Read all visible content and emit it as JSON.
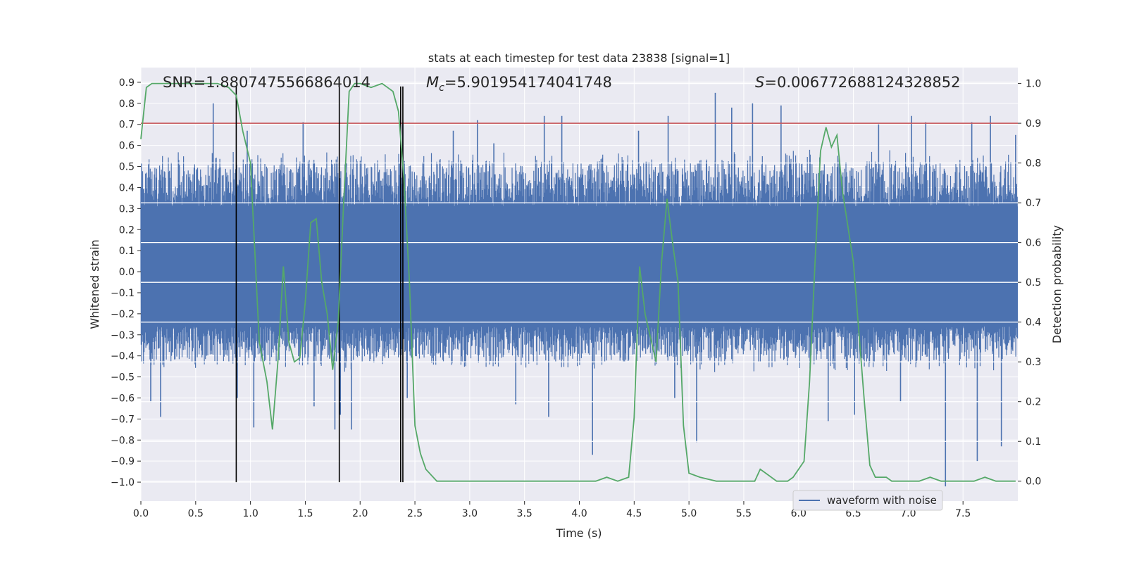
{
  "chart_data": {
    "type": "line",
    "title": "stats at each timestep for test data 23838 [signal=1]",
    "xlabel": "Time (s)",
    "ylabel_left": "Whitened strain",
    "ylabel_right": "Detection probability",
    "xlim": [
      0,
      8.0
    ],
    "ylim_left": [
      -1.09,
      0.97
    ],
    "ylim_right": [
      -0.05,
      1.04
    ],
    "x_ticks": [
      0.0,
      0.5,
      1.0,
      1.5,
      2.0,
      2.5,
      3.0,
      3.5,
      4.0,
      4.5,
      5.0,
      5.5,
      6.0,
      6.5,
      7.0,
      7.5
    ],
    "x_tick_labels": [
      "0.0",
      "0.5",
      "1.0",
      "1.5",
      "2.0",
      "2.5",
      "3.0",
      "3.5",
      "4.0",
      "4.5",
      "5.0",
      "5.5",
      "6.0",
      "6.5",
      "7.0",
      "7.5"
    ],
    "y_left_ticks": [
      0.9,
      0.8,
      0.7,
      0.6,
      0.5,
      0.4,
      0.3,
      0.2,
      0.1,
      0.0,
      -0.1,
      -0.2,
      -0.3,
      -0.4,
      -0.5,
      -0.6,
      -0.7,
      -0.8,
      -0.9,
      -1.0
    ],
    "y_left_tick_labels": [
      "0.9",
      "0.8",
      "0.7",
      "0.6",
      "0.5",
      "0.4",
      "0.3",
      "0.2",
      "0.1",
      "0.0",
      "−0.1",
      "−0.2",
      "−0.3",
      "−0.4",
      "−0.5",
      "−0.6",
      "−0.7",
      "−0.8",
      "−0.9",
      "−1.0"
    ],
    "y_right_ticks": [
      1.0,
      0.9,
      0.8,
      0.7,
      0.6,
      0.5,
      0.4,
      0.3,
      0.2,
      0.1,
      0.0
    ],
    "y_right_tick_labels": [
      "1.0",
      "0.9",
      "0.8",
      "0.7",
      "0.6",
      "0.5",
      "0.4",
      "0.3",
      "0.2",
      "0.1",
      "0.0"
    ],
    "grid": true,
    "legend": {
      "placement": "lower-right",
      "entries": [
        "waveform with noise"
      ]
    },
    "annotations": {
      "snr_prefix": "SNR=",
      "snr": "1.8807475566864014",
      "mc_symbol": "M",
      "mc_subscript": "c",
      "mc_eq": "=",
      "mc": "5.901954174041748",
      "s_symbol": "S",
      "s_eq": "=",
      "s": "0.006772688124328852"
    },
    "threshold": {
      "axis": "right",
      "y": 0.9,
      "color": "#c44e52"
    },
    "vertical_markers": {
      "x": [
        0.87,
        1.81,
        2.37,
        2.39
      ],
      "ylim_left": [
        -1.0,
        0.88
      ],
      "color": "#000000"
    },
    "waveform": {
      "name": "waveform with noise",
      "color": "#4c72b0",
      "axis": "left",
      "x_range": [
        0,
        8.0
      ],
      "core_band": [
        -0.26,
        0.31
      ],
      "typical_extent": [
        -0.45,
        0.55
      ],
      "spikes": [
        {
          "x": 0.09,
          "y": -0.62
        },
        {
          "x": 0.18,
          "y": -0.69
        },
        {
          "x": 0.66,
          "y": 0.8
        },
        {
          "x": 0.88,
          "y": -0.6
        },
        {
          "x": 0.97,
          "y": 0.67
        },
        {
          "x": 1.03,
          "y": -0.74
        },
        {
          "x": 1.48,
          "y": 0.71
        },
        {
          "x": 1.58,
          "y": -0.64
        },
        {
          "x": 1.77,
          "y": -0.75
        },
        {
          "x": 1.82,
          "y": -0.68
        },
        {
          "x": 1.92,
          "y": -0.75
        },
        {
          "x": 2.37,
          "y": 0.71
        },
        {
          "x": 2.39,
          "y": 0.71
        },
        {
          "x": 2.43,
          "y": -0.6
        },
        {
          "x": 2.85,
          "y": 0.67
        },
        {
          "x": 3.07,
          "y": 0.72
        },
        {
          "x": 3.22,
          "y": 0.61
        },
        {
          "x": 3.42,
          "y": -0.63
        },
        {
          "x": 3.68,
          "y": 0.74
        },
        {
          "x": 3.72,
          "y": -0.69
        },
        {
          "x": 3.84,
          "y": 0.74
        },
        {
          "x": 4.12,
          "y": -0.87
        },
        {
          "x": 4.54,
          "y": 0.67
        },
        {
          "x": 4.81,
          "y": 0.74
        },
        {
          "x": 4.87,
          "y": -0.6
        },
        {
          "x": 5.07,
          "y": -0.81
        },
        {
          "x": 5.24,
          "y": 0.85
        },
        {
          "x": 5.39,
          "y": 0.78
        },
        {
          "x": 5.58,
          "y": 0.8
        },
        {
          "x": 5.84,
          "y": 0.79
        },
        {
          "x": 6.27,
          "y": -0.71
        },
        {
          "x": 6.51,
          "y": -0.68
        },
        {
          "x": 6.73,
          "y": 0.7
        },
        {
          "x": 6.93,
          "y": -0.62
        },
        {
          "x": 7.03,
          "y": 0.74
        },
        {
          "x": 7.16,
          "y": 0.71
        },
        {
          "x": 7.34,
          "y": -1.02
        },
        {
          "x": 7.58,
          "y": 0.71
        },
        {
          "x": 7.63,
          "y": -0.9
        },
        {
          "x": 7.75,
          "y": 0.74
        },
        {
          "x": 7.85,
          "y": -0.83
        },
        {
          "x": 7.98,
          "y": 0.65
        }
      ]
    },
    "probability": {
      "axis": "right",
      "color": "#55a868",
      "x": [
        0.0,
        0.05,
        0.1,
        0.15,
        0.2,
        0.3,
        0.4,
        0.5,
        0.6,
        0.7,
        0.8,
        0.87,
        0.93,
        1.0,
        1.08,
        1.15,
        1.2,
        1.25,
        1.3,
        1.35,
        1.4,
        1.45,
        1.5,
        1.55,
        1.6,
        1.65,
        1.7,
        1.75,
        1.8,
        1.85,
        1.9,
        1.95,
        2.0,
        2.1,
        2.2,
        2.25,
        2.3,
        2.35,
        2.4,
        2.45,
        2.5,
        2.55,
        2.6,
        2.7,
        2.8,
        3.0,
        3.2,
        3.3,
        3.5,
        3.75,
        4.0,
        4.15,
        4.25,
        4.35,
        4.45,
        4.5,
        4.55,
        4.6,
        4.7,
        4.75,
        4.8,
        4.85,
        4.9,
        4.95,
        5.0,
        5.1,
        5.25,
        5.4,
        5.6,
        5.65,
        5.7,
        5.8,
        5.9,
        5.95,
        6.05,
        6.1,
        6.15,
        6.2,
        6.25,
        6.3,
        6.35,
        6.4,
        6.5,
        6.6,
        6.65,
        6.7,
        6.8,
        6.85,
        6.9,
        7.0,
        7.1,
        7.2,
        7.3,
        7.4,
        7.5,
        7.6,
        7.7,
        7.8,
        7.9,
        7.98
      ],
      "y": [
        0.86,
        0.99,
        1.0,
        1.0,
        1.0,
        1.0,
        1.0,
        1.0,
        1.0,
        1.0,
        0.99,
        0.97,
        0.88,
        0.8,
        0.35,
        0.25,
        0.13,
        0.3,
        0.54,
        0.35,
        0.3,
        0.31,
        0.45,
        0.65,
        0.66,
        0.5,
        0.42,
        0.28,
        0.4,
        0.7,
        0.98,
        1.0,
        1.0,
        0.99,
        1.0,
        0.99,
        0.98,
        0.93,
        0.76,
        0.5,
        0.14,
        0.07,
        0.03,
        0.0,
        0.0,
        0.0,
        0.0,
        0.0,
        0.0,
        0.0,
        0.0,
        0.0,
        0.01,
        0.0,
        0.01,
        0.16,
        0.54,
        0.42,
        0.3,
        0.55,
        0.71,
        0.6,
        0.5,
        0.14,
        0.02,
        0.01,
        0.0,
        0.0,
        0.0,
        0.03,
        0.02,
        0.0,
        0.0,
        0.01,
        0.05,
        0.25,
        0.55,
        0.83,
        0.89,
        0.84,
        0.87,
        0.73,
        0.55,
        0.2,
        0.04,
        0.01,
        0.01,
        0.0,
        0.0,
        0.0,
        0.0,
        0.01,
        0.0,
        0.0,
        0.0,
        0.0,
        0.01,
        0.0,
        0.0,
        0.0
      ]
    }
  }
}
